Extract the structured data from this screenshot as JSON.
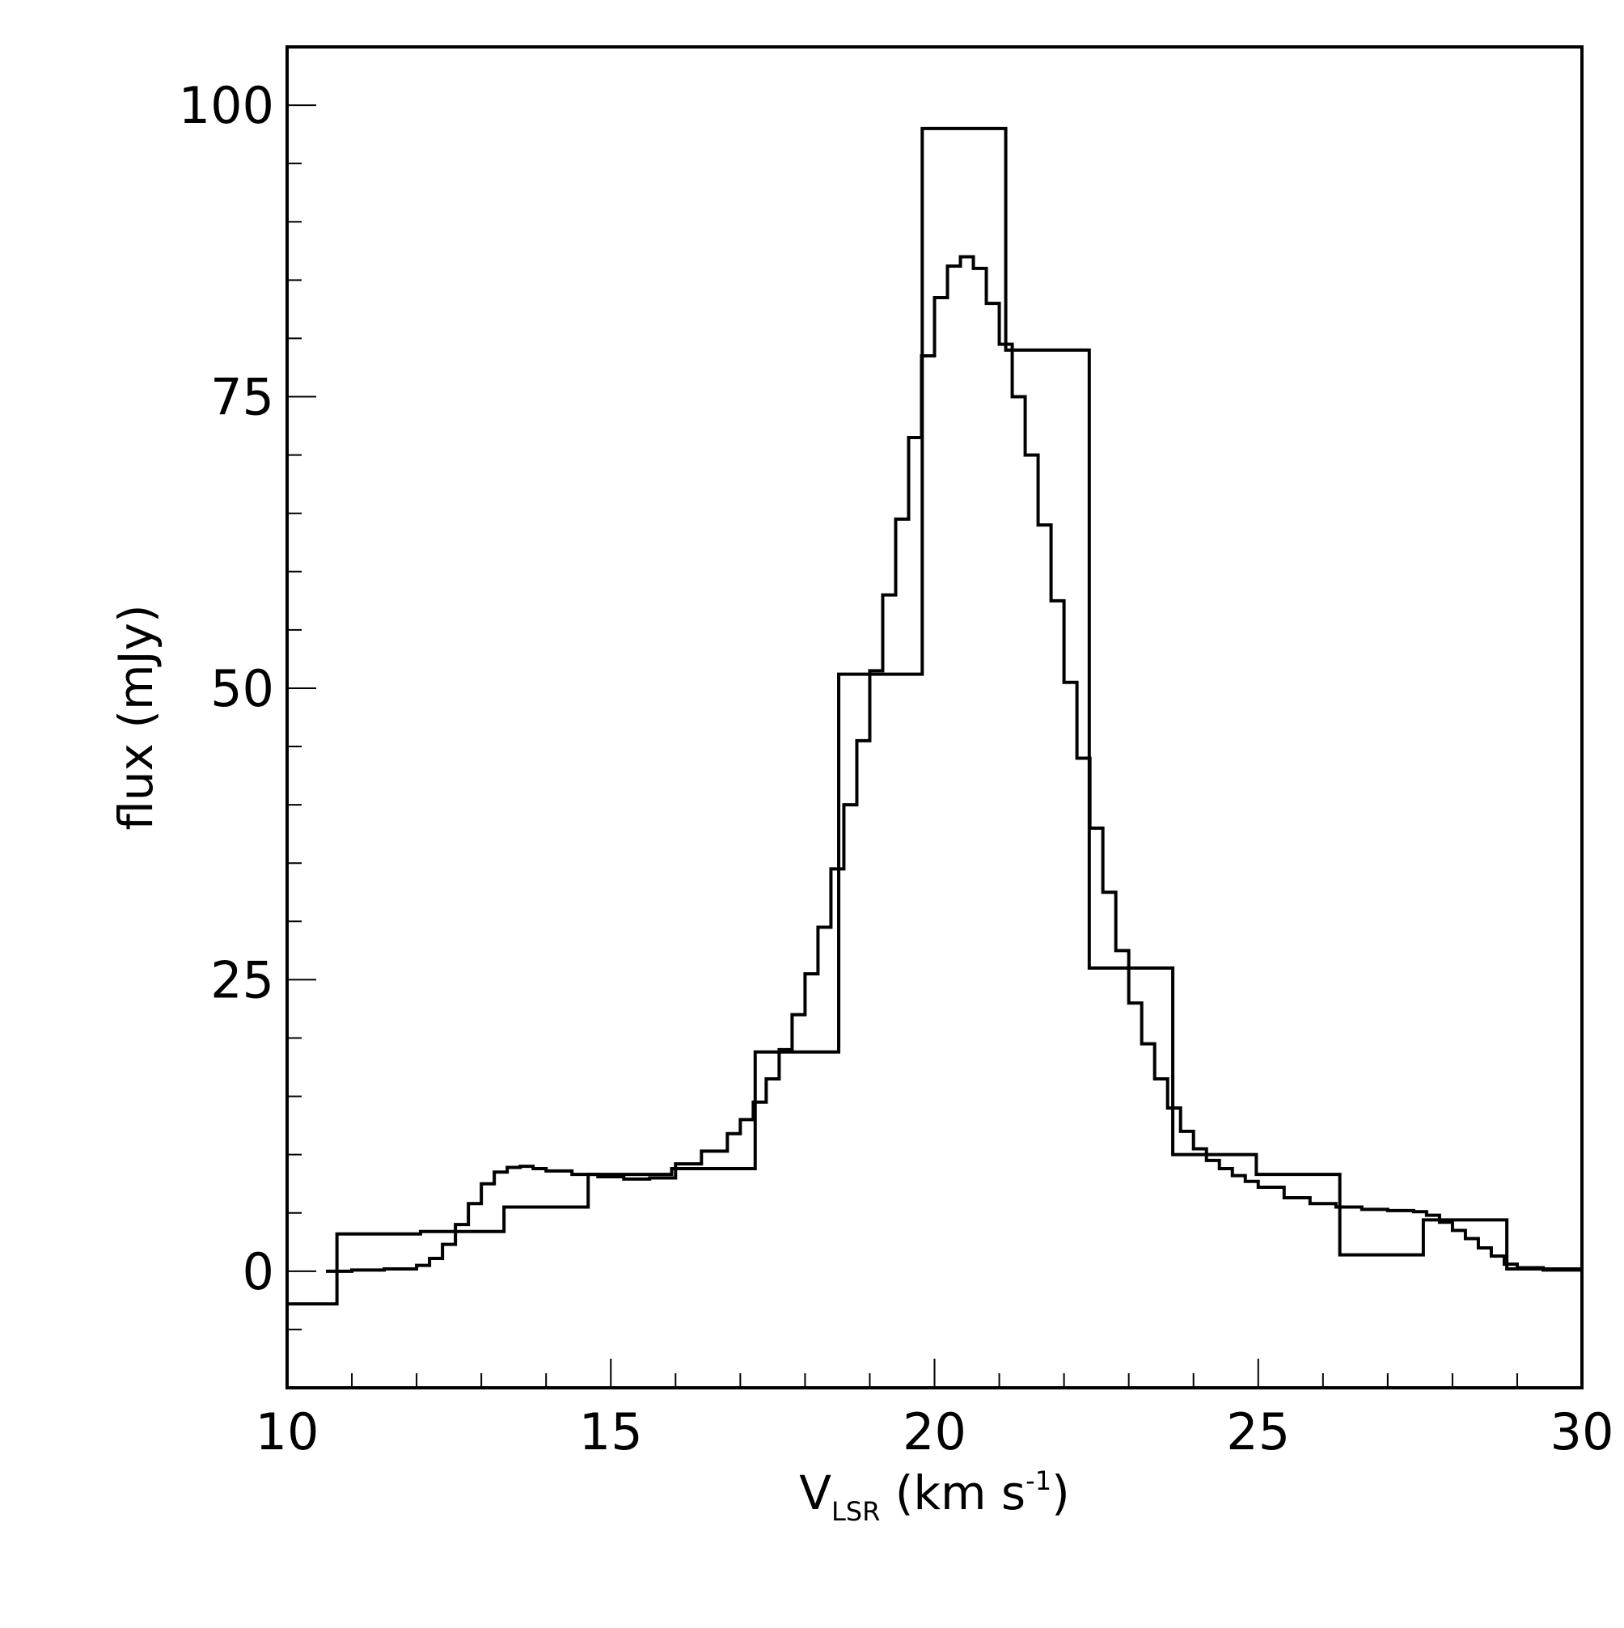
{
  "chart_data": {
    "type": "line",
    "xlabel": {
      "main": "V",
      "subscript": "LSR",
      "rest": " (km s",
      "superscript": "-1",
      "close": ")"
    },
    "ylabel": "flux (mJy)",
    "xlim": [
      10,
      30
    ],
    "ylim": [
      -10,
      105
    ],
    "x_ticks": [
      10,
      15,
      20,
      25,
      30
    ],
    "x_tick_labels": [
      "10",
      "15",
      "20",
      "25",
      "30"
    ],
    "y_ticks": [
      0,
      25,
      50,
      75,
      100
    ],
    "y_tick_labels": [
      "0",
      "25",
      "50",
      "75",
      "100"
    ],
    "x_minor_step": 1,
    "y_minor_step": 5,
    "grid": false,
    "colors": {
      "line": "#000000",
      "frame": "#000000",
      "background": "#ffffff"
    },
    "series": [
      {
        "style": "step-coarse",
        "bins": [
          {
            "x0": 10.0,
            "x1": 10.77,
            "y": -2.8
          },
          {
            "x0": 10.77,
            "x1": 12.06,
            "y": 3.2
          },
          {
            "x0": 12.06,
            "x1": 13.35,
            "y": 3.4
          },
          {
            "x0": 13.35,
            "x1": 14.65,
            "y": 5.5
          },
          {
            "x0": 14.65,
            "x1": 15.94,
            "y": 8.3
          },
          {
            "x0": 15.94,
            "x1": 17.23,
            "y": 8.8
          },
          {
            "x0": 17.23,
            "x1": 18.52,
            "y": 18.8
          },
          {
            "x0": 18.52,
            "x1": 19.81,
            "y": 51.2
          },
          {
            "x0": 19.81,
            "x1": 21.1,
            "y": 98.0
          },
          {
            "x0": 21.1,
            "x1": 22.39,
            "y": 79.0
          },
          {
            "x0": 22.39,
            "x1": 23.68,
            "y": 26.0
          },
          {
            "x0": 23.68,
            "x1": 24.97,
            "y": 10.0
          },
          {
            "x0": 24.97,
            "x1": 26.26,
            "y": 8.3
          },
          {
            "x0": 26.26,
            "x1": 27.55,
            "y": 1.4
          },
          {
            "x0": 27.55,
            "x1": 28.84,
            "y": 4.4
          },
          {
            "x0": 28.84,
            "x1": 30.0,
            "y": 0.2
          }
        ]
      },
      {
        "style": "step-fine",
        "x": [
          10.6,
          11.0,
          11.5,
          12.0,
          12.2,
          12.4,
          12.6,
          12.8,
          13.0,
          13.2,
          13.4,
          13.6,
          13.8,
          14.0,
          14.4,
          14.8,
          15.2,
          15.6,
          16.0,
          16.4,
          16.8,
          17.0,
          17.2,
          17.4,
          17.6,
          17.8,
          18.0,
          18.2,
          18.4,
          18.6,
          18.8,
          19.0,
          19.2,
          19.4,
          19.6,
          19.8,
          20.0,
          20.2,
          20.4,
          20.6,
          20.8,
          21.0,
          21.2,
          21.4,
          21.6,
          21.8,
          22.0,
          22.2,
          22.4,
          22.6,
          22.8,
          23.0,
          23.2,
          23.4,
          23.6,
          23.8,
          24.0,
          24.2,
          24.4,
          24.6,
          24.8,
          25.0,
          25.4,
          25.8,
          26.2,
          26.6,
          27.0,
          27.4,
          27.6,
          27.8,
          28.0,
          28.2,
          28.4,
          28.6,
          28.8,
          29.0,
          29.4,
          30.0
        ],
        "y": [
          0.0,
          0.1,
          0.2,
          0.5,
          1.1,
          2.3,
          4.0,
          5.8,
          7.5,
          8.5,
          8.9,
          9.0,
          8.8,
          8.6,
          8.3,
          8.1,
          7.9,
          8.0,
          9.2,
          10.3,
          11.8,
          13.0,
          14.5,
          16.5,
          19.0,
          22.0,
          25.5,
          29.5,
          34.5,
          40.0,
          45.5,
          51.5,
          58.0,
          64.5,
          71.5,
          78.5,
          83.5,
          86.2,
          87.0,
          86.0,
          83.0,
          79.5,
          75.0,
          70.0,
          64.0,
          57.5,
          50.5,
          44.0,
          38.0,
          32.5,
          27.5,
          23.0,
          19.5,
          16.5,
          14.0,
          12.0,
          10.5,
          9.5,
          8.8,
          8.2,
          7.7,
          7.2,
          6.3,
          5.8,
          5.5,
          5.3,
          5.2,
          5.1,
          4.8,
          4.2,
          3.5,
          2.8,
          2.0,
          1.3,
          0.6,
          0.3,
          0.1,
          0.0
        ]
      }
    ]
  }
}
